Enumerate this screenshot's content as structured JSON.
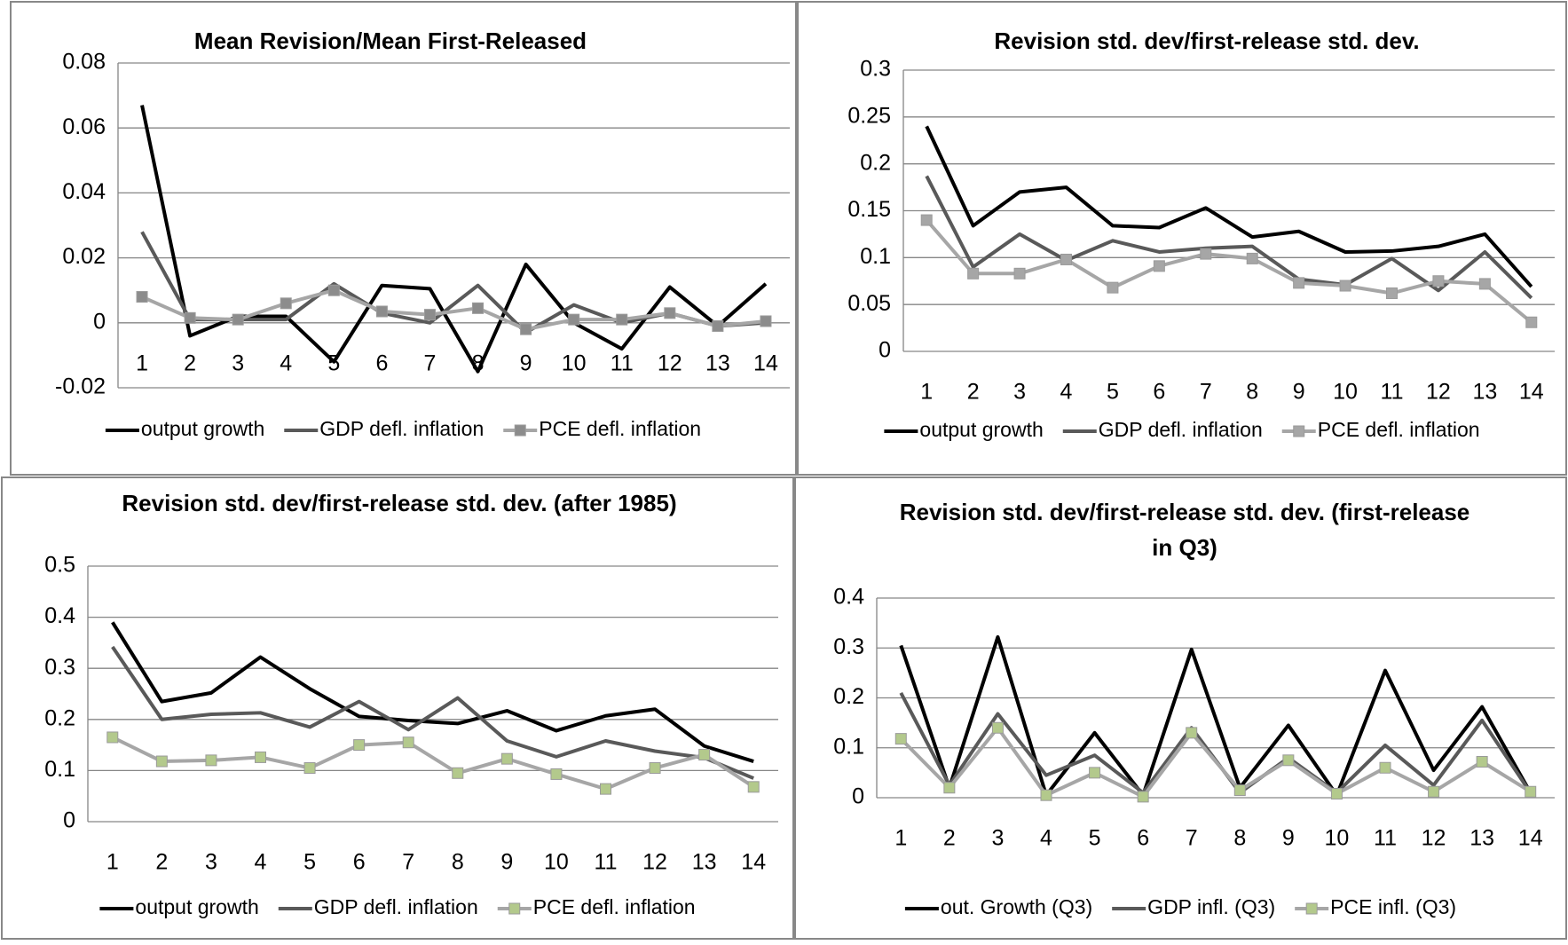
{
  "chart_data": [
    {
      "type": "line",
      "title": "Mean Revision/Mean First-Released",
      "categories": [
        "1",
        "2",
        "3",
        "4",
        "5",
        "6",
        "7",
        "8",
        "9",
        "10",
        "11",
        "12",
        "13",
        "14"
      ],
      "ylim": [
        -0.02,
        0.08
      ],
      "yticks": [
        -0.02,
        0,
        0.02,
        0.04,
        0.06,
        0.08
      ],
      "grid": true,
      "legend": "bottom",
      "series": [
        {
          "name": "output growth",
          "color": "#000000",
          "values": [
            0.067,
            -0.004,
            0.002,
            0.002,
            -0.012,
            0.0115,
            0.0105,
            -0.015,
            0.018,
            0.0,
            -0.008,
            0.011,
            -0.001,
            0.012
          ]
        },
        {
          "name": "GDP defl. inflation",
          "color": "#595959",
          "values": [
            0.028,
            0.001,
            0.001,
            0.001,
            0.012,
            0.003,
            0.0,
            0.0115,
            -0.003,
            0.0055,
            0.0,
            0.003,
            -0.001,
            0.0
          ]
        },
        {
          "name": "PCE defl.  inflation",
          "color": "#a6a6a6",
          "marker": "square",
          "marker_color": "#8c8c8c",
          "values": [
            0.008,
            0.0015,
            0.001,
            0.006,
            0.01,
            0.0035,
            0.0025,
            0.0045,
            -0.002,
            0.001,
            0.001,
            0.003,
            -0.001,
            0.0005
          ]
        }
      ]
    },
    {
      "type": "line",
      "title": "Revision std. dev/first-release std. dev.",
      "categories": [
        "1",
        "2",
        "3",
        "4",
        "5",
        "6",
        "7",
        "8",
        "9",
        "10",
        "11",
        "12",
        "13",
        "14"
      ],
      "ylim": [
        0,
        0.3
      ],
      "yticks": [
        0,
        0.05,
        0.1,
        0.15,
        0.2,
        0.25,
        0.3
      ],
      "grid": true,
      "legend": "bottom",
      "series": [
        {
          "name": "output growth",
          "color": "#000000",
          "values": [
            0.24,
            0.134,
            0.17,
            0.175,
            0.134,
            0.132,
            0.153,
            0.122,
            0.128,
            0.106,
            0.107,
            0.112,
            0.125,
            0.069
          ]
        },
        {
          "name": "GDP defl. inflation",
          "color": "#595959",
          "values": [
            0.187,
            0.09,
            0.125,
            0.097,
            0.118,
            0.106,
            0.11,
            0.112,
            0.077,
            0.071,
            0.099,
            0.065,
            0.106,
            0.057
          ]
        },
        {
          "name": "PCE defl.  inflation",
          "color": "#a6a6a6",
          "marker": "square",
          "marker_color": "#a6a6a6",
          "values": [
            0.14,
            0.083,
            0.083,
            0.098,
            0.068,
            0.091,
            0.104,
            0.099,
            0.073,
            0.07,
            0.062,
            0.075,
            0.072,
            0.031
          ]
        }
      ]
    },
    {
      "type": "line",
      "title": "Revision std. dev/first-release std. dev. (after 1985)",
      "categories": [
        "1",
        "2",
        "3",
        "4",
        "5",
        "6",
        "7",
        "8",
        "9",
        "10",
        "11",
        "12",
        "13",
        "14"
      ],
      "ylim": [
        0,
        0.5
      ],
      "yticks": [
        0,
        0.1,
        0.2,
        0.3,
        0.4,
        0.5
      ],
      "grid": true,
      "legend": "bottom",
      "series": [
        {
          "name": "output growth",
          "color": "#000000",
          "values": [
            0.39,
            0.235,
            0.252,
            0.322,
            0.26,
            0.206,
            0.198,
            0.192,
            0.217,
            0.178,
            0.207,
            0.22,
            0.148,
            0.118
          ]
        },
        {
          "name": "GDP defl. inflation",
          "color": "#595959",
          "values": [
            0.342,
            0.2,
            0.21,
            0.213,
            0.185,
            0.235,
            0.18,
            0.242,
            0.158,
            0.127,
            0.158,
            0.138,
            0.125,
            0.085
          ]
        },
        {
          "name": "PCE defl.  inflation",
          "color": "#a6a6a6",
          "marker": "square",
          "marker_color": "#b3c98c",
          "values": [
            0.165,
            0.118,
            0.12,
            0.126,
            0.105,
            0.15,
            0.155,
            0.095,
            0.123,
            0.093,
            0.064,
            0.105,
            0.131,
            0.068
          ]
        }
      ]
    },
    {
      "type": "line",
      "title": "Revision std. dev/first-release std. dev. (first-release in Q3)",
      "categories": [
        "1",
        "2",
        "3",
        "4",
        "5",
        "6",
        "7",
        "8",
        "9",
        "10",
        "11",
        "12",
        "13",
        "14"
      ],
      "ylim": [
        0,
        0.4
      ],
      "yticks": [
        0,
        0.1,
        0.2,
        0.3,
        0.4
      ],
      "grid": true,
      "legend": "bottom",
      "series": [
        {
          "name": "out. Growth (Q3)",
          "color": "#000000",
          "values": [
            0.305,
            0.02,
            0.322,
            0.005,
            0.13,
            0.005,
            0.297,
            0.02,
            0.145,
            0.005,
            0.255,
            0.055,
            0.182,
            0.01
          ]
        },
        {
          "name": "GDP infl. (Q3)",
          "color": "#595959",
          "values": [
            0.21,
            0.025,
            0.168,
            0.045,
            0.085,
            0.01,
            0.14,
            0.01,
            0.08,
            0.01,
            0.105,
            0.025,
            0.155,
            0.01
          ]
        },
        {
          "name": "PCE infl. (Q3)",
          "color": "#a6a6a6",
          "marker": "square",
          "marker_color": "#b3c98c",
          "values": [
            0.118,
            0.02,
            0.14,
            0.005,
            0.05,
            0.002,
            0.13,
            0.015,
            0.075,
            0.008,
            0.06,
            0.012,
            0.072,
            0.012
          ]
        }
      ]
    }
  ]
}
